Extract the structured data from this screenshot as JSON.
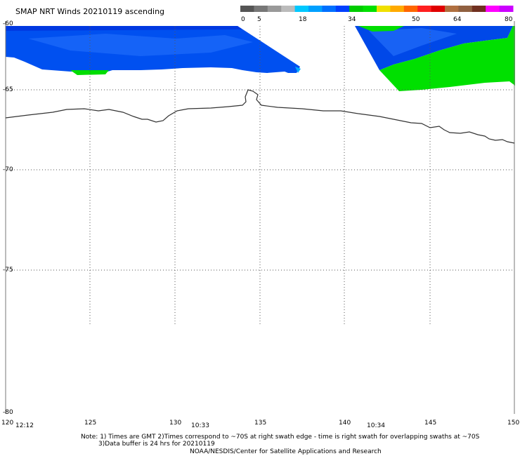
{
  "title": "SMAP NRT Winds 20210119 ascending",
  "colorbar": {
    "ticks": [
      {
        "label": "0"
      },
      {
        "label": "5"
      },
      {
        "label": "18"
      },
      {
        "label": "34"
      },
      {
        "label": "50"
      },
      {
        "label": "64"
      },
      {
        "label": "80"
      }
    ],
    "colors": [
      "#555555",
      "#777777",
      "#999999",
      "#bbbbbb",
      "#00c8ff",
      "#00a0ff",
      "#0070ff",
      "#0040ff",
      "#00cc00",
      "#00e000",
      "#f0e000",
      "#ffaa00",
      "#ff6600",
      "#ff2020",
      "#e00000",
      "#b07040",
      "#906040",
      "#703020",
      "#ff00ff",
      "#cc00ff"
    ]
  },
  "map": {
    "lat_labels": [
      "-60",
      "-65",
      "-70",
      "-75",
      "-80"
    ],
    "lon_labels": [
      "120",
      "125",
      "130",
      "135",
      "140",
      "145",
      "150"
    ],
    "time_labels": [
      "12:12",
      "10:33",
      "10:34"
    ]
  },
  "notes": {
    "line1": "Note: 1) Times are GMT 2)Times correspond to ~70S at right swath edge - time is right swath for overlapping swaths at ~70S",
    "line2": "3)Data buffer is 24 hrs for 20210119",
    "credit": "NOAA/NESDIS/Center for Satellite Applications and Research"
  }
}
